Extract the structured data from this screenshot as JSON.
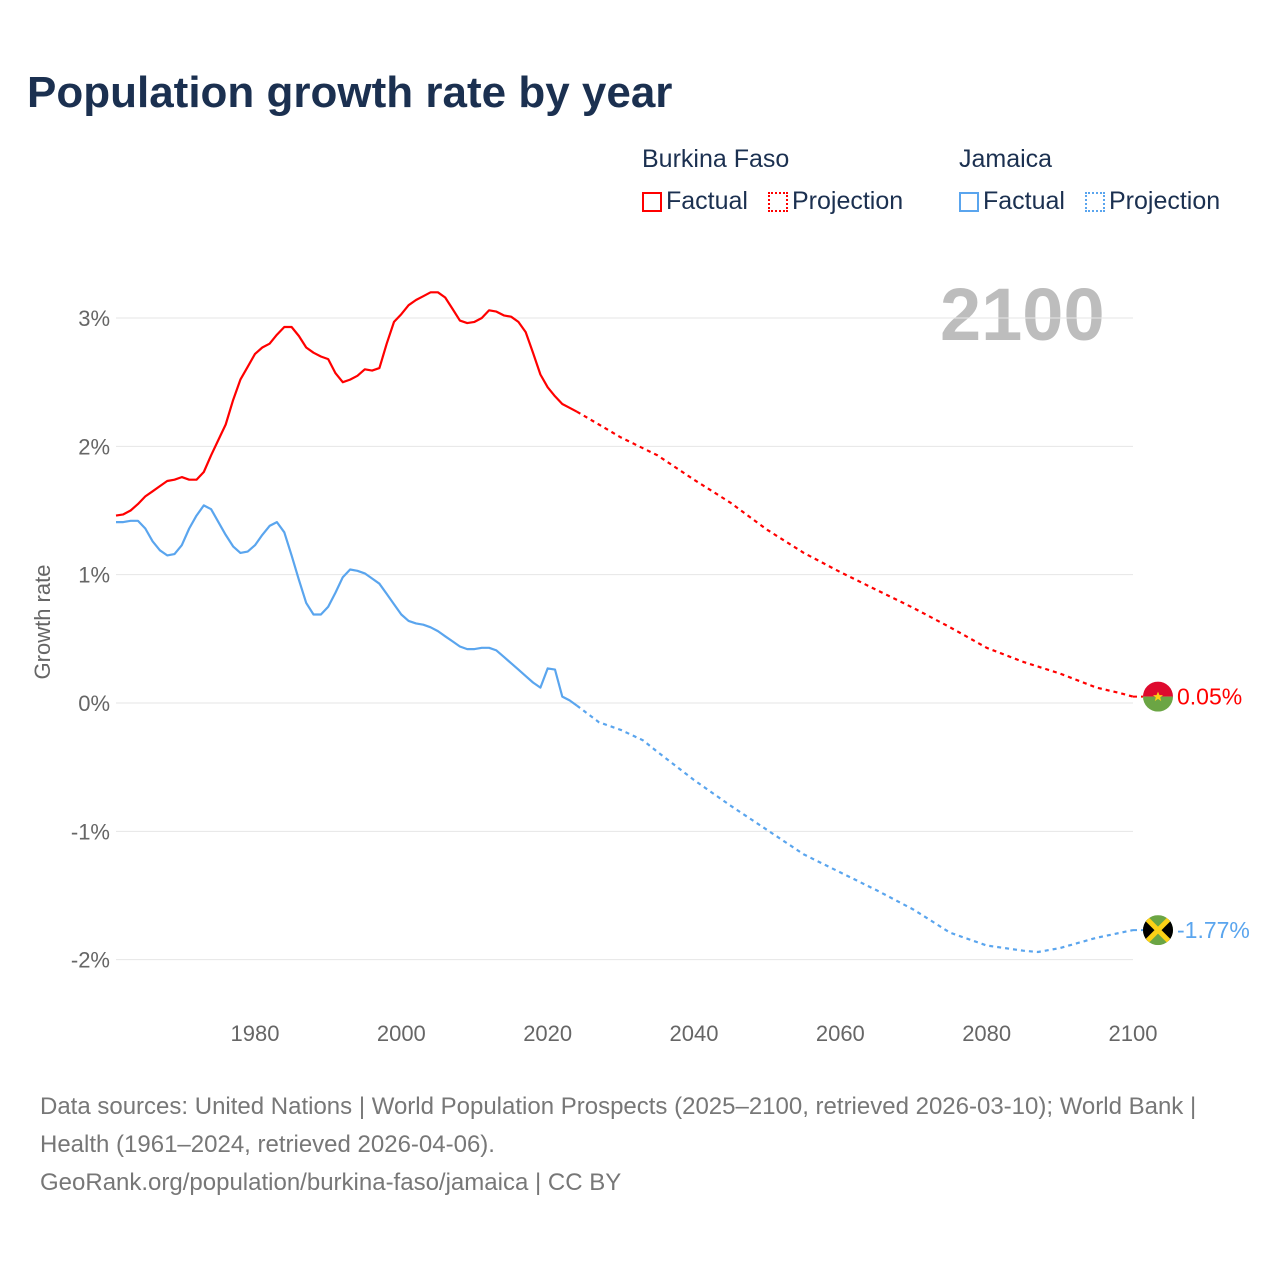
{
  "title": "Population growth rate by year",
  "year_badge": "2100",
  "legend": [
    {
      "country": "Burkina Faso",
      "color": "#ff0000",
      "factual": "Factual",
      "projection": "Projection"
    },
    {
      "country": "Jamaica",
      "color": "#5aa5ee",
      "factual": "Factual",
      "projection": "Projection"
    }
  ],
  "end_labels": {
    "burkina": "0.05%",
    "jamaica": "-1.77%"
  },
  "footer": {
    "sources": "Data sources: United Nations | World Population Prospects (2025–2100, retrieved 2026-03-10); World Bank | Health (1961–2024, retrieved 2026-04-06).",
    "link": "GeoRank.org/population/burkina-faso/jamaica | CC BY"
  },
  "chart_data": {
    "type": "line",
    "title": "Population growth rate by year",
    "ylabel": "Growth rate",
    "xlabel": "",
    "xlim": [
      1961,
      2100
    ],
    "ylim": [
      -2.3,
      3.5
    ],
    "xticks": [
      1980,
      2000,
      2020,
      2040,
      2060,
      2080,
      2100
    ],
    "xtick_labels": [
      "1980",
      "2000",
      "2020",
      "2040",
      "2060",
      "2080",
      "2100"
    ],
    "yticks": [
      3,
      2,
      1,
      0,
      -1,
      -2
    ],
    "ytick_labels": [
      "3%",
      "2%",
      "1%",
      "0%",
      "-1%",
      "-2%"
    ],
    "grid": true,
    "series": [
      {
        "name": "Burkina Faso – Factual",
        "color": "#ff0000",
        "dashed": false,
        "points": [
          [
            1961,
            1.46
          ],
          [
            1962,
            1.47
          ],
          [
            1963,
            1.5
          ],
          [
            1964,
            1.55
          ],
          [
            1965,
            1.61
          ],
          [
            1966,
            1.65
          ],
          [
            1967,
            1.69
          ],
          [
            1968,
            1.73
          ],
          [
            1969,
            1.74
          ],
          [
            1970,
            1.76
          ],
          [
            1971,
            1.74
          ],
          [
            1972,
            1.74
          ],
          [
            1973,
            1.8
          ],
          [
            1974,
            1.93
          ],
          [
            1975,
            2.05
          ],
          [
            1976,
            2.17
          ],
          [
            1977,
            2.36
          ],
          [
            1978,
            2.52
          ],
          [
            1979,
            2.62
          ],
          [
            1980,
            2.72
          ],
          [
            1981,
            2.77
          ],
          [
            1982,
            2.8
          ],
          [
            1983,
            2.87
          ],
          [
            1984,
            2.93
          ],
          [
            1985,
            2.93
          ],
          [
            1986,
            2.86
          ],
          [
            1987,
            2.77
          ],
          [
            1988,
            2.73
          ],
          [
            1989,
            2.7
          ],
          [
            1990,
            2.68
          ],
          [
            1991,
            2.57
          ],
          [
            1992,
            2.5
          ],
          [
            1993,
            2.52
          ],
          [
            1994,
            2.55
          ],
          [
            1995,
            2.6
          ],
          [
            1996,
            2.59
          ],
          [
            1997,
            2.61
          ],
          [
            1998,
            2.8
          ],
          [
            1999,
            2.97
          ],
          [
            2000,
            3.03
          ],
          [
            2001,
            3.1
          ],
          [
            2002,
            3.14
          ],
          [
            2003,
            3.17
          ],
          [
            2004,
            3.2
          ],
          [
            2005,
            3.2
          ],
          [
            2006,
            3.16
          ],
          [
            2007,
            3.07
          ],
          [
            2008,
            2.98
          ],
          [
            2009,
            2.96
          ],
          [
            2010,
            2.97
          ],
          [
            2011,
            3.0
          ],
          [
            2012,
            3.06
          ],
          [
            2013,
            3.05
          ],
          [
            2014,
            3.02
          ],
          [
            2015,
            3.01
          ],
          [
            2016,
            2.97
          ],
          [
            2017,
            2.89
          ],
          [
            2018,
            2.73
          ],
          [
            2019,
            2.56
          ],
          [
            2020,
            2.46
          ],
          [
            2021,
            2.39
          ],
          [
            2022,
            2.33
          ],
          [
            2023,
            2.3
          ],
          [
            2024,
            2.27
          ]
        ]
      },
      {
        "name": "Burkina Faso – Projection",
        "color": "#ff0000",
        "dashed": true,
        "points": [
          [
            2024,
            2.27
          ],
          [
            2027,
            2.17
          ],
          [
            2030,
            2.07
          ],
          [
            2035,
            1.93
          ],
          [
            2040,
            1.74
          ],
          [
            2045,
            1.56
          ],
          [
            2050,
            1.35
          ],
          [
            2055,
            1.17
          ],
          [
            2060,
            1.02
          ],
          [
            2065,
            0.88
          ],
          [
            2070,
            0.74
          ],
          [
            2075,
            0.59
          ],
          [
            2080,
            0.43
          ],
          [
            2085,
            0.32
          ],
          [
            2090,
            0.23
          ],
          [
            2095,
            0.12
          ],
          [
            2098,
            0.08
          ],
          [
            2100,
            0.05
          ]
        ]
      },
      {
        "name": "Jamaica – Factual",
        "color": "#5aa5ee",
        "dashed": false,
        "points": [
          [
            1961,
            1.41
          ],
          [
            1962,
            1.41
          ],
          [
            1963,
            1.42
          ],
          [
            1964,
            1.42
          ],
          [
            1965,
            1.36
          ],
          [
            1966,
            1.26
          ],
          [
            1967,
            1.19
          ],
          [
            1968,
            1.15
          ],
          [
            1969,
            1.16
          ],
          [
            1970,
            1.23
          ],
          [
            1971,
            1.36
          ],
          [
            1972,
            1.46
          ],
          [
            1973,
            1.54
          ],
          [
            1974,
            1.51
          ],
          [
            1975,
            1.41
          ],
          [
            1976,
            1.31
          ],
          [
            1977,
            1.22
          ],
          [
            1978,
            1.17
          ],
          [
            1979,
            1.18
          ],
          [
            1980,
            1.23
          ],
          [
            1981,
            1.31
          ],
          [
            1982,
            1.38
          ],
          [
            1983,
            1.41
          ],
          [
            1984,
            1.33
          ],
          [
            1985,
            1.15
          ],
          [
            1986,
            0.96
          ],
          [
            1987,
            0.78
          ],
          [
            1988,
            0.69
          ],
          [
            1989,
            0.69
          ],
          [
            1990,
            0.75
          ],
          [
            1991,
            0.86
          ],
          [
            1992,
            0.98
          ],
          [
            1993,
            1.04
          ],
          [
            1994,
            1.03
          ],
          [
            1995,
            1.01
          ],
          [
            1996,
            0.97
          ],
          [
            1997,
            0.93
          ],
          [
            1998,
            0.85
          ],
          [
            1999,
            0.77
          ],
          [
            2000,
            0.69
          ],
          [
            2001,
            0.64
          ],
          [
            2002,
            0.62
          ],
          [
            2003,
            0.61
          ],
          [
            2004,
            0.59
          ],
          [
            2005,
            0.56
          ],
          [
            2006,
            0.52
          ],
          [
            2007,
            0.48
          ],
          [
            2008,
            0.44
          ],
          [
            2009,
            0.42
          ],
          [
            2010,
            0.42
          ],
          [
            2011,
            0.43
          ],
          [
            2012,
            0.43
          ],
          [
            2013,
            0.41
          ],
          [
            2014,
            0.36
          ],
          [
            2015,
            0.31
          ],
          [
            2016,
            0.26
          ],
          [
            2017,
            0.21
          ],
          [
            2018,
            0.16
          ],
          [
            2019,
            0.12
          ],
          [
            2020,
            0.27
          ],
          [
            2021,
            0.26
          ],
          [
            2022,
            0.05
          ],
          [
            2023,
            0.02
          ],
          [
            2024,
            -0.02
          ]
        ]
      },
      {
        "name": "Jamaica – Projection",
        "color": "#5aa5ee",
        "dashed": true,
        "points": [
          [
            2024,
            -0.02
          ],
          [
            2027,
            -0.15
          ],
          [
            2030,
            -0.21
          ],
          [
            2033,
            -0.29
          ],
          [
            2035,
            -0.38
          ],
          [
            2040,
            -0.6
          ],
          [
            2045,
            -0.8
          ],
          [
            2050,
            -0.99
          ],
          [
            2055,
            -1.18
          ],
          [
            2060,
            -1.32
          ],
          [
            2065,
            -1.46
          ],
          [
            2070,
            -1.61
          ],
          [
            2075,
            -1.79
          ],
          [
            2080,
            -1.89
          ],
          [
            2085,
            -1.93
          ],
          [
            2087,
            -1.94
          ],
          [
            2090,
            -1.91
          ],
          [
            2095,
            -1.83
          ],
          [
            2100,
            -1.77
          ]
        ]
      }
    ]
  }
}
